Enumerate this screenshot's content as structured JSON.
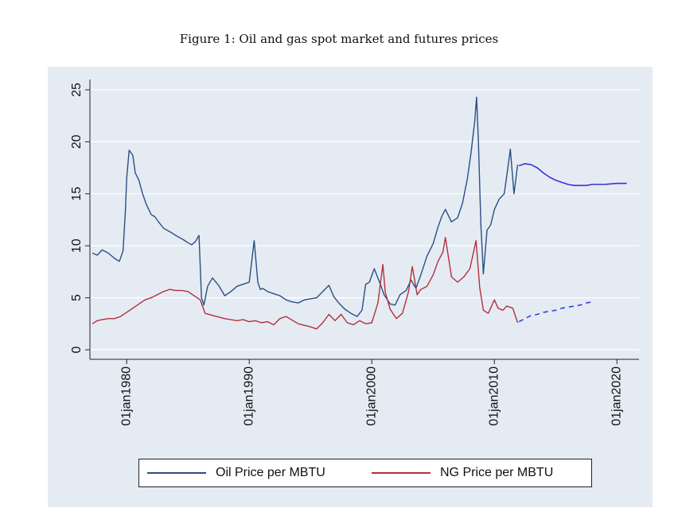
{
  "caption": "Figure 1: Oil and gas spot market and futures prices",
  "colors": {
    "panel_bg": "#e5ebf3",
    "oil": "#2a4f85",
    "ng": "#b3303c",
    "oil_futures": "#3a2fe0",
    "ng_futures": "#2f44d8",
    "grid": "#ffffff"
  },
  "chart_data": {
    "type": "line",
    "title": "",
    "xlabel": "",
    "ylabel": "",
    "xlim": [
      1977.0,
      2021.8
    ],
    "ylim": [
      0,
      25
    ],
    "yticks": [
      0,
      5,
      10,
      15,
      20,
      25
    ],
    "ytick_labels": [
      "0",
      "5",
      "10",
      "15",
      "20",
      "25"
    ],
    "xticks": [
      1980,
      1990,
      2000,
      2010,
      2020
    ],
    "xtick_labels": [
      "01jan1980",
      "01jan1990",
      "01jan2000",
      "01jan2010",
      "01jan2020"
    ],
    "grid": true,
    "legend": {
      "position": "bottom",
      "entries": [
        "Oil Price per MBTU",
        "NG Price per MBTU"
      ]
    },
    "series": [
      {
        "name": "Oil Price per MBTU",
        "style": "solid",
        "x": [
          1977.2,
          1977.6,
          1978.0,
          1978.5,
          1979.0,
          1979.4,
          1979.7,
          1979.9,
          1980.0,
          1980.2,
          1980.5,
          1980.7,
          1981.0,
          1981.3,
          1981.6,
          1982.0,
          1982.3,
          1982.6,
          1983.0,
          1983.3,
          1983.6,
          1984.0,
          1984.3,
          1984.6,
          1985.0,
          1985.3,
          1985.6,
          1985.9,
          1986.1,
          1986.3,
          1986.6,
          1987.0,
          1987.5,
          1988.0,
          1988.5,
          1989.0,
          1989.5,
          1990.0,
          1990.4,
          1990.7,
          1990.9,
          1991.1,
          1991.5,
          1992.0,
          1992.5,
          1993.0,
          1993.5,
          1994.0,
          1994.5,
          1995.0,
          1995.5,
          1996.0,
          1996.5,
          1996.9,
          1997.3,
          1997.8,
          1998.3,
          1998.8,
          1999.2,
          1999.5,
          1999.8,
          2000.2,
          2000.7,
          2001.0,
          2001.5,
          2001.9,
          2002.3,
          2002.8,
          2003.2,
          2003.6,
          2004.0,
          2004.5,
          2005.0,
          2005.4,
          2005.7,
          2006.0,
          2006.5,
          2007.0,
          2007.4,
          2007.8,
          2008.1,
          2008.4,
          2008.55,
          2008.7,
          2008.9,
          2009.1,
          2009.4,
          2009.7,
          2010.0,
          2010.4,
          2010.8,
          2011.1,
          2011.3,
          2011.6,
          2011.9
        ],
        "values": [
          9.3,
          9.1,
          9.6,
          9.3,
          8.8,
          8.5,
          9.5,
          13.5,
          16.5,
          19.2,
          18.7,
          17.0,
          16.3,
          15.0,
          14.0,
          13.0,
          12.8,
          12.3,
          11.7,
          11.5,
          11.3,
          11.0,
          10.8,
          10.6,
          10.3,
          10.1,
          10.4,
          11.0,
          5.0,
          4.3,
          6.1,
          6.9,
          6.2,
          5.2,
          5.6,
          6.1,
          6.3,
          6.5,
          10.5,
          6.5,
          5.8,
          5.9,
          5.6,
          5.4,
          5.2,
          4.8,
          4.6,
          4.5,
          4.8,
          4.9,
          5.0,
          5.6,
          6.2,
          5.1,
          4.5,
          3.9,
          3.5,
          3.2,
          3.8,
          6.3,
          6.5,
          7.8,
          6.3,
          5.3,
          4.4,
          4.3,
          5.3,
          5.7,
          6.7,
          5.9,
          7.2,
          9.0,
          10.2,
          11.8,
          12.8,
          13.5,
          12.3,
          12.7,
          14.1,
          16.5,
          19.0,
          22.0,
          24.3,
          20.0,
          12.0,
          7.3,
          11.5,
          12.0,
          13.5,
          14.5,
          15.0,
          17.5,
          19.3,
          15.0,
          17.8
        ]
      },
      {
        "name": "Oil futures",
        "style": "solid",
        "x": [
          2012.0,
          2012.5,
          2013.0,
          2013.5,
          2014.0,
          2014.5,
          2015.0,
          2015.5,
          2016.0,
          2016.5,
          2017.0,
          2017.5,
          2018.0,
          2019.0,
          2020.0,
          2020.8
        ],
        "values": [
          17.7,
          17.9,
          17.8,
          17.5,
          17.0,
          16.6,
          16.3,
          16.1,
          15.9,
          15.8,
          15.8,
          15.8,
          15.9,
          15.9,
          16.0,
          16.0
        ]
      },
      {
        "name": "NG Price per MBTU",
        "style": "solid",
        "x": [
          1977.2,
          1977.6,
          1978.0,
          1978.5,
          1979.0,
          1979.5,
          1980.0,
          1980.5,
          1981.0,
          1981.5,
          1982.0,
          1982.5,
          1983.0,
          1983.5,
          1984.0,
          1984.5,
          1985.0,
          1985.5,
          1986.0,
          1986.4,
          1987.0,
          1988.0,
          1989.0,
          1989.5,
          1990.0,
          1990.5,
          1991.0,
          1991.5,
          1992.0,
          1992.5,
          1993.0,
          1994.0,
          1995.0,
          1995.5,
          1996.0,
          1996.5,
          1997.0,
          1997.5,
          1998.0,
          1998.5,
          1999.0,
          1999.5,
          2000.0,
          2000.5,
          2000.9,
          2001.1,
          2001.5,
          2002.0,
          2002.5,
          2003.0,
          2003.3,
          2003.7,
          2004.0,
          2004.5,
          2005.0,
          2005.4,
          2005.8,
          2006.0,
          2006.5,
          2007.0,
          2007.5,
          2008.0,
          2008.5,
          2008.8,
          2009.1,
          2009.5,
          2010.0,
          2010.3,
          2010.7,
          2011.0,
          2011.5,
          2011.9
        ],
        "values": [
          2.5,
          2.8,
          2.9,
          3.0,
          3.0,
          3.2,
          3.6,
          4.0,
          4.4,
          4.8,
          5.0,
          5.3,
          5.6,
          5.8,
          5.7,
          5.7,
          5.6,
          5.2,
          4.8,
          3.5,
          3.3,
          3.0,
          2.8,
          2.9,
          2.7,
          2.8,
          2.6,
          2.7,
          2.4,
          3.0,
          3.2,
          2.5,
          2.2,
          2.0,
          2.6,
          3.4,
          2.8,
          3.4,
          2.6,
          2.4,
          2.8,
          2.5,
          2.6,
          4.5,
          8.2,
          5.5,
          3.9,
          3.0,
          3.5,
          5.6,
          8.0,
          5.3,
          5.8,
          6.1,
          7.2,
          8.5,
          9.4,
          10.8,
          7.0,
          6.5,
          7.0,
          7.8,
          10.5,
          6.0,
          3.8,
          3.5,
          4.8,
          4.0,
          3.8,
          4.2,
          4.0,
          2.6
        ]
      },
      {
        "name": "NG futures",
        "style": "dashed",
        "x": [
          2012.0,
          2012.5,
          2013.0,
          2013.5,
          2014.0,
          2014.5,
          2015.0,
          2015.5,
          2016.0,
          2016.5,
          2017.0,
          2017.5,
          2018.0
        ],
        "values": [
          2.7,
          3.0,
          3.3,
          3.4,
          3.6,
          3.7,
          3.8,
          4.0,
          4.1,
          4.2,
          4.3,
          4.5,
          4.6
        ]
      }
    ]
  },
  "legend": {
    "oil_label": "Oil Price per MBTU",
    "ng_label": "NG Price per MBTU"
  }
}
